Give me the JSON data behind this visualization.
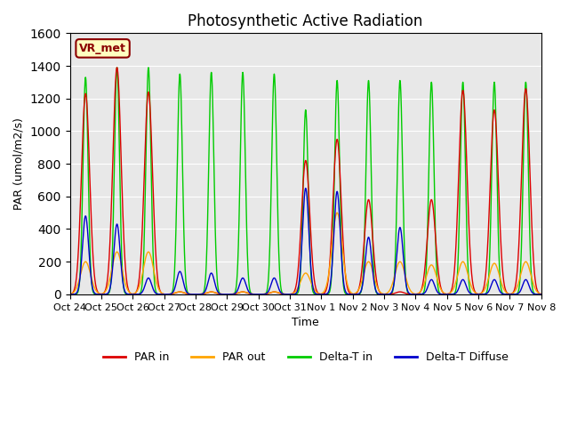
{
  "title": "Photosynthetic Active Radiation",
  "ylabel": "PAR (umol/m2/s)",
  "xlabel": "Time",
  "annotation": "VR_met",
  "ylim": [
    0,
    1600
  ],
  "colors": {
    "PAR_in": "#dd0000",
    "PAR_out": "#ffa500",
    "Delta_T_in": "#00cc00",
    "Delta_T_Diffuse": "#0000cc"
  },
  "tick_labels": [
    "Oct 24",
    "Oct 25",
    "Oct 26",
    "Oct 27",
    "Oct 28",
    "Oct 29",
    "Oct 30",
    "Oct 31",
    "Nov 1",
    "Nov 2",
    "Nov 3",
    "Nov 4",
    "Nov 5",
    "Nov 6",
    "Nov 7",
    "Nov 8"
  ],
  "n_days": 15,
  "day_peaks": {
    "PAR_in": [
      1230,
      1390,
      1240,
      15,
      15,
      15,
      15,
      820,
      950,
      580,
      15,
      580,
      1250,
      1130,
      1260
    ],
    "PAR_out": [
      200,
      260,
      260,
      15,
      15,
      15,
      15,
      130,
      500,
      200,
      200,
      180,
      200,
      190,
      200
    ],
    "Delta_T_in": [
      1330,
      1390,
      1390,
      1350,
      1360,
      1360,
      1350,
      1130,
      1310,
      1310,
      1310,
      1300,
      1300,
      1300,
      1300
    ],
    "Delta_T_Diff": [
      480,
      430,
      100,
      140,
      130,
      100,
      100,
      650,
      630,
      350,
      410,
      90,
      90,
      90,
      90
    ]
  }
}
